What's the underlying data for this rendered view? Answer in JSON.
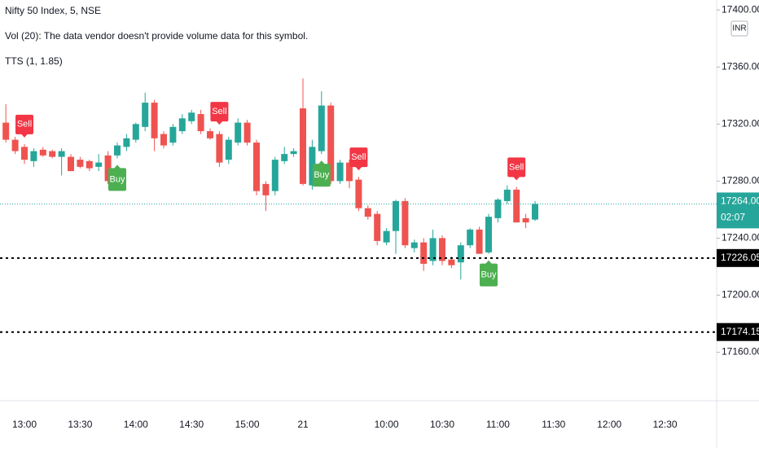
{
  "chart_data": {
    "type": "candlestick",
    "title": "Nifty 50 Index, 5, NSE",
    "volume_note": "Vol (20): The data vendor doesn't provide volume data for this symbol.",
    "indicator": "TTS (1, 1.85)",
    "currency": "INR",
    "categories": [
      null,
      null,
      "13:00",
      null,
      null,
      null,
      null,
      null,
      "13:30",
      null,
      null,
      null,
      null,
      null,
      "14:00",
      null,
      null,
      null,
      null,
      null,
      "14:30",
      null,
      null,
      null,
      null,
      null,
      "15:00",
      null,
      null,
      null,
      null,
      null,
      "21",
      null,
      null,
      null,
      null,
      null,
      null,
      null,
      null,
      "10:00",
      null,
      null,
      null,
      null,
      null,
      "10:30",
      null,
      null,
      null,
      null,
      null,
      "11:00",
      null,
      null,
      null,
      null,
      null,
      "11:30",
      null,
      null,
      null,
      null,
      null,
      "12:00",
      null,
      null,
      null,
      null,
      null,
      "12:30",
      null,
      null,
      null,
      null
    ],
    "open": [
      17321,
      17309,
      17304,
      17294,
      17302,
      17301,
      17297,
      17297,
      17295,
      17294,
      17290,
      17298,
      17298,
      17304,
      17309,
      17318,
      17335,
      17313,
      17307,
      17315,
      17322,
      17327,
      17315,
      17313,
      17295,
      17307,
      17321,
      17307,
      17278,
      17273,
      17294,
      17299,
      17331,
      17277,
      17301,
      17333,
      17280,
      17293,
      17281,
      17261,
      17257,
      17237,
      17245,
      17266,
      17233,
      17237,
      17224,
      17240,
      17225,
      17223,
      17235,
      17246,
      17230,
      17254,
      17266,
      17274,
      17254,
      17253,
      null,
      null,
      null,
      null,
      null,
      null,
      null,
      null,
      null,
      null,
      null,
      null,
      null,
      null,
      null,
      null,
      null,
      null
    ],
    "high": [
      17334,
      17311,
      17306,
      17303,
      17304,
      17302,
      17303,
      17299,
      17297,
      17295,
      17299,
      17301,
      17307,
      17313,
      17321,
      17342,
      17337,
      17315,
      17320,
      17327,
      17330,
      17330,
      17317,
      17315,
      17311,
      17324,
      17323,
      17309,
      17280,
      17297,
      17304,
      17303,
      17352,
      17309,
      17343,
      17335,
      17295,
      17295,
      17283,
      17263,
      17259,
      17247,
      17267,
      17268,
      17239,
      17240,
      17246,
      17242,
      17227,
      17237,
      17247,
      17248,
      17257,
      17268,
      17277,
      17276,
      17257,
      17266,
      null,
      null,
      null,
      null,
      null,
      null,
      null,
      null,
      null,
      null,
      null,
      null,
      null,
      null,
      null,
      null,
      null,
      null
    ],
    "low": [
      17307,
      17299,
      17292,
      17290,
      17297,
      17296,
      17284,
      17287,
      17289,
      17287,
      17287,
      17278,
      17296,
      17301,
      17307,
      17315,
      17301,
      17303,
      17305,
      17313,
      17320,
      17313,
      17309,
      17290,
      17292,
      17305,
      17305,
      17270,
      17259,
      17270,
      17292,
      17297,
      17277,
      17274,
      17299,
      17278,
      17278,
      17275,
      17259,
      17253,
      17235,
      17235,
      17229,
      17233,
      17230,
      17217,
      17221,
      17221,
      17219,
      17211,
      17233,
      17229,
      17229,
      17251,
      17264,
      17251,
      17247,
      17252,
      null,
      null,
      null,
      null,
      null,
      null,
      null,
      null,
      null,
      null,
      null,
      null,
      null,
      null,
      null,
      null,
      null,
      null
    ],
    "close": [
      17309,
      17301,
      17295,
      17301,
      17298,
      17297,
      17301,
      17287,
      17290,
      17289,
      17293,
      17280,
      17305,
      17310,
      17320,
      17335,
      17310,
      17305,
      17318,
      17324,
      17328,
      17315,
      17310,
      17293,
      17309,
      17321,
      17307,
      17273,
      17270,
      17295,
      17299,
      17301,
      17278,
      17304,
      17333,
      17280,
      17293,
      17280,
      17261,
      17255,
      17238,
      17245,
      17266,
      17235,
      17237,
      17222,
      17240,
      17224,
      17221,
      17235,
      17246,
      17229,
      17255,
      17267,
      17274,
      17251,
      17251,
      17264,
      null,
      null,
      null,
      null,
      null,
      null,
      null,
      null,
      null,
      null,
      null,
      null,
      null,
      null,
      null,
      null,
      null,
      null
    ],
    "signals": [
      null,
      null,
      "Sell",
      null,
      null,
      null,
      null,
      null,
      null,
      null,
      null,
      null,
      "Buy",
      null,
      null,
      null,
      null,
      null,
      null,
      null,
      null,
      null,
      null,
      "Sell",
      null,
      null,
      null,
      null,
      null,
      null,
      null,
      null,
      null,
      null,
      "Buy",
      null,
      null,
      null,
      "Sell",
      null,
      null,
      null,
      null,
      null,
      null,
      null,
      null,
      null,
      null,
      null,
      null,
      null,
      "Buy",
      null,
      null,
      "Sell",
      null,
      null,
      null,
      null,
      null,
      null,
      null,
      null,
      null,
      null,
      null,
      null,
      null,
      null,
      null,
      null,
      null,
      null,
      null,
      null
    ],
    "up_color": "#26a69a",
    "down_color": "#ef5350",
    "buy_color": "#4caf50",
    "sell_color": "#f23645",
    "ylim": [
      17126,
      17407
    ],
    "yticks": [
      {
        "value": 17160,
        "label": "17160.00"
      },
      {
        "value": 17200,
        "label": "17200.00"
      },
      {
        "value": 17240,
        "label": "17240.00"
      },
      {
        "value": 17280,
        "label": "17280.00"
      },
      {
        "value": 17320,
        "label": "17320.00"
      },
      {
        "value": 17360,
        "label": "17360.00"
      },
      {
        "value": 17400,
        "label": "17400.00"
      }
    ],
    "hlines": [
      17226.05,
      17174.15
    ],
    "last_price": {
      "value": 17264,
      "label": "17264.00"
    },
    "countdown": "02:07"
  }
}
